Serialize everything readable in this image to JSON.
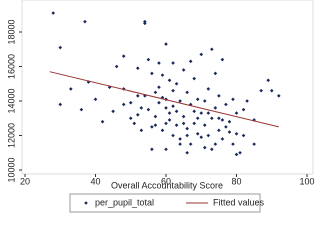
{
  "chart_data": {
    "type": "scatter",
    "x_label": "Overall Accountability Score",
    "xlim": [
      20,
      100
    ],
    "xticks": [
      20,
      40,
      60,
      80,
      100
    ],
    "ylim": [
      10000,
      20000
    ],
    "yticks": [
      10000,
      12000,
      14000,
      16000,
      18000
    ],
    "series": [
      {
        "name": "per_pupil_total",
        "color": "#1a2a5c",
        "x": [
          28,
          30,
          30,
          33,
          37,
          38,
          36,
          40,
          42,
          44,
          45,
          46,
          48,
          48,
          50,
          50,
          51,
          52,
          52,
          53,
          54,
          54,
          55,
          55,
          56,
          56,
          57,
          57,
          58,
          58,
          59,
          59,
          60,
          60,
          60,
          61,
          61,
          62,
          62,
          62,
          63,
          63,
          64,
          64,
          65,
          65,
          66,
          66,
          67,
          67,
          68,
          68,
          69,
          69,
          70,
          70,
          71,
          71,
          72,
          72,
          73,
          73,
          74,
          74,
          75,
          75,
          76,
          76,
          77,
          78,
          78,
          79,
          80,
          80,
          81,
          82,
          82,
          83,
          85,
          87,
          89,
          90,
          92,
          85,
          64,
          66,
          60,
          56,
          52,
          48,
          58,
          62,
          67,
          70,
          73,
          76,
          79,
          63,
          59,
          61,
          65,
          68,
          71,
          74,
          77,
          54,
          57,
          53,
          60,
          66,
          69,
          72,
          75,
          80
        ],
        "values": [
          19100,
          17100,
          13800,
          14700,
          18600,
          15100,
          13500,
          14100,
          12800,
          14800,
          13400,
          16000,
          14700,
          16600,
          13000,
          13900,
          12700,
          15900,
          14300,
          13600,
          18500,
          18600,
          16400,
          13500,
          15600,
          12500,
          14500,
          13100,
          16200,
          14800,
          15500,
          12300,
          14100,
          13600,
          17300,
          15200,
          12900,
          14600,
          16200,
          12000,
          13400,
          15000,
          14000,
          11800,
          13100,
          15800,
          14500,
          12400,
          13800,
          16300,
          12700,
          15300,
          14100,
          12100,
          13300,
          16700,
          12600,
          11300,
          14700,
          12000,
          17000,
          13000,
          15600,
          11500,
          12300,
          14300,
          16400,
          11800,
          13800,
          12200,
          12800,
          14100,
          13300,
          10900,
          11000,
          12000,
          13500,
          14000,
          12900,
          14600,
          15200,
          14600,
          14300,
          11500,
          11500,
          11000,
          11200,
          11200,
          13200,
          13800,
          13900,
          13700,
          11500,
          11900,
          11200,
          12900,
          11500,
          12600,
          14200,
          13300,
          12700,
          13400,
          14000,
          13600,
          12500,
          14300,
          12600,
          12300,
          12700,
          12000,
          13000,
          13300,
          13000,
          12100
        ]
      },
      {
        "name": "Fitted values",
        "type": "line",
        "color": "#9b3131",
        "x": [
          27,
          92
        ],
        "values": [
          15700,
          12500
        ]
      }
    ]
  }
}
